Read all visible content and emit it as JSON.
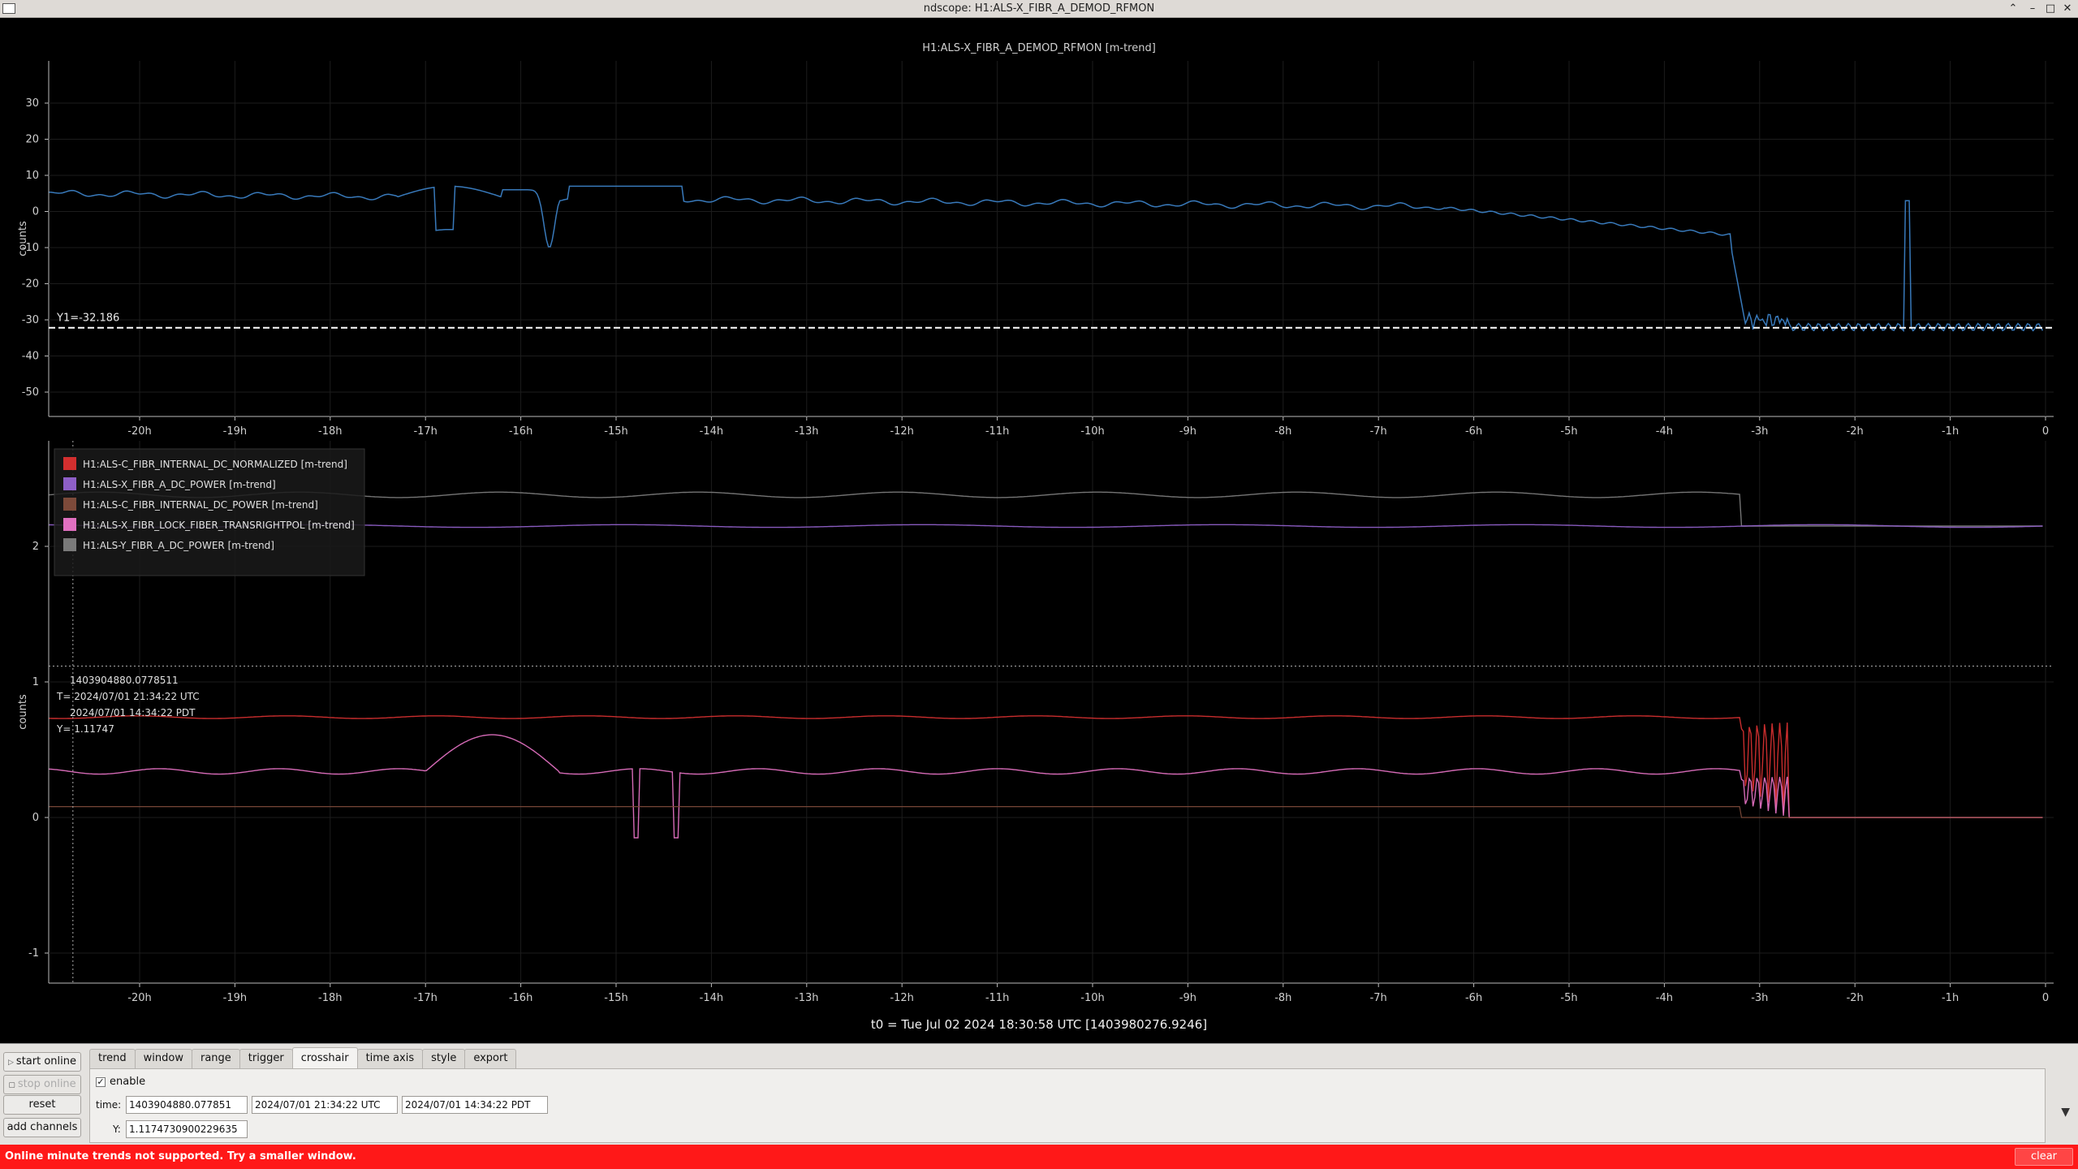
{
  "window": {
    "title": "ndscope: H1:ALS-X_FIBR_A_DEMOD_RFMON",
    "buttons": [
      "⌃",
      "–",
      "□",
      "✕"
    ]
  },
  "colors": {
    "background": "#000000",
    "plot1_trace": "#3b7fc4",
    "channel_red": "#d32f2f",
    "channel_purple": "#8e5fc7",
    "channel_brown": "#7d4a3a",
    "channel_pink": "#e070c0",
    "channel_gray": "#7a7a7a",
    "status_error": "#ff1818"
  },
  "plot1": {
    "title": "H1:ALS-X_FIBR_A_DEMOD_RFMON [m-trend]",
    "ylabel": "counts",
    "y_ticks": [
      "30",
      "20",
      "10",
      "0",
      "-10",
      "-20",
      "-30",
      "-40",
      "-50"
    ],
    "cursor_label": "Y1=-32.186"
  },
  "plot2": {
    "ylabel": "counts",
    "y_ticks": [
      "2",
      "1",
      "0",
      "-1"
    ],
    "legend": [
      {
        "label": "H1:ALS-C_FIBR_INTERNAL_DC_NORMALIZED [m-trend]",
        "color": "#d32f2f"
      },
      {
        "label": "H1:ALS-X_FIBR_A_DC_POWER [m-trend]",
        "color": "#8e5fc7"
      },
      {
        "label": "H1:ALS-C_FIBR_INTERNAL_DC_POWER [m-trend]",
        "color": "#7d4a3a"
      },
      {
        "label": "H1:ALS-X_FIBR_LOCK_FIBER_TRANSRIGHTPOL [m-trend]",
        "color": "#e070c0"
      },
      {
        "label": "H1:ALS-Y_FIBR_A_DC_POWER [m-trend]",
        "color": "#7a7a7a"
      }
    ],
    "crosshair_readout": [
      "1403904880.0778511",
      "T= 2024/07/01 21:34:22 UTC",
      "2024/07/01 14:34:22 PDT",
      "Y= 1.11747"
    ]
  },
  "x_ticks": [
    "-20h",
    "-19h",
    "-18h",
    "-17h",
    "-16h",
    "-15h",
    "-14h",
    "-13h",
    "-12h",
    "-11h",
    "-10h",
    "-9h",
    "-8h",
    "-7h",
    "-6h",
    "-5h",
    "-4h",
    "-3h",
    "-2h",
    "-1h",
    "0"
  ],
  "t0_label": "t0 = Tue Jul 02 2024 18:30:58 UTC [1403980276.9246]",
  "controls": {
    "start_online": "start online",
    "stop_online": "stop online",
    "reset": "reset",
    "add_channels": "add channels",
    "tabs": [
      "trend",
      "window",
      "range",
      "trigger",
      "crosshair",
      "time axis",
      "style",
      "export"
    ],
    "active_tab": "crosshair",
    "enable_label": "enable",
    "time_label": "time:",
    "time_gps": "1403904880.077851",
    "time_utc": "2024/07/01 21:34:22 UTC",
    "time_pdt": "2024/07/01 14:34:22 PDT",
    "y_label": "Y:",
    "y_value": "1.1174730900229635"
  },
  "status": {
    "message": "Online minute trends not supported.  Try a smaller window.",
    "clear_label": "clear"
  }
}
